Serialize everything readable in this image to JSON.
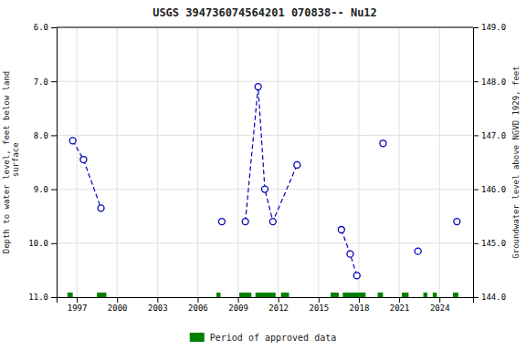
{
  "chart_data": {
    "type": "line",
    "title": "USGS 394736074564201 070838-- Nu12",
    "ylabel": "Depth to water level, feet below land\n surface",
    "y2label": "Groundwater level above NGVD 1929, feet",
    "xlim": [
      1995.5,
      2026.5
    ],
    "ylim": [
      11.0,
      6.0
    ],
    "y2lim": [
      144.0,
      149.0
    ],
    "xticks": [
      1997,
      2000,
      2003,
      2006,
      2009,
      2012,
      2015,
      2018,
      2021,
      2024
    ],
    "yticks": [
      {
        "value": 6.0,
        "label": "6.0"
      },
      {
        "value": 7.0,
        "label": "7.0"
      },
      {
        "value": 8.0,
        "label": "8.0"
      },
      {
        "value": 9.0,
        "label": "9.0"
      },
      {
        "value": 10.0,
        "label": "10.0"
      },
      {
        "value": 11.0,
        "label": "11.0"
      }
    ],
    "y2ticks": [
      {
        "value": 144.0,
        "label": "144.0"
      },
      {
        "value": 145.0,
        "label": "145.0"
      },
      {
        "value": 146.0,
        "label": "146.0"
      },
      {
        "value": 147.0,
        "label": "147.0"
      },
      {
        "value": 148.0,
        "label": "148.0"
      },
      {
        "value": 149.0,
        "label": "149.0"
      }
    ],
    "grid": true,
    "legend": "bottom",
    "series": [
      {
        "type": "line",
        "line_style": "dashed",
        "color": "#0000bb",
        "x": [
          1996.7,
          1997.5,
          1998.8
        ],
        "values": [
          8.1,
          8.45,
          9.35
        ]
      },
      {
        "type": "line",
        "line_style": "dashed",
        "color": "#0000bb",
        "x": [
          2009.55,
          2010.5,
          2011.0,
          2011.6,
          2013.4
        ],
        "values": [
          9.6,
          7.1,
          9.0,
          9.6,
          8.55
        ]
      },
      {
        "type": "line",
        "line_style": "dashed",
        "color": "#0000bb",
        "x": [
          2016.7,
          2017.35,
          2017.85
        ],
        "values": [
          9.75,
          10.2,
          10.6
        ]
      },
      {
        "type": "scatter",
        "marker": "open-circle",
        "color": "#0000bb",
        "x": [
          1996.7,
          1997.5,
          1998.8,
          2007.8,
          2009.55,
          2010.5,
          2011.0,
          2011.6,
          2013.4,
          2016.7,
          2017.35,
          2017.85,
          2019.8,
          2022.4,
          2025.3
        ],
        "values": [
          8.1,
          8.45,
          9.35,
          9.6,
          9.6,
          7.1,
          9.0,
          9.6,
          8.55,
          9.75,
          10.2,
          10.6,
          8.15,
          10.15,
          9.6
        ]
      }
    ],
    "approved_periods": {
      "name": "Period of approved data",
      "color": "#008000",
      "start": [
        1996.3,
        1998.5,
        2007.4,
        2009.1,
        2010.3,
        2012.2,
        2015.9,
        2016.8,
        2019.4,
        2021.2,
        2022.8,
        2023.5,
        2025.0
      ],
      "end": [
        1996.7,
        1999.2,
        2007.7,
        2010.0,
        2011.8,
        2012.8,
        2016.5,
        2018.5,
        2019.8,
        2021.7,
        2023.1,
        2023.8,
        2025.4
      ]
    }
  }
}
